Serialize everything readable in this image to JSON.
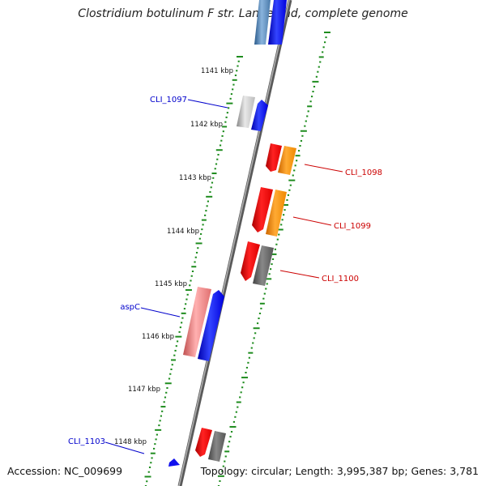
{
  "title": "Clostridium botulinum F str. Langeland, complete genome",
  "accession": "Accession: NC_009699",
  "topology": "Topology: circular; Length: 3,995,387 bp; Genes: 3,781",
  "colors": {
    "backbone": "#888888",
    "tick_dots": "#1e8c1e",
    "forward_label": "#0000cc",
    "reverse_label": "#cc0000"
  },
  "kbp_ticks": [
    "1141 kbp",
    "1142 kbp",
    "1143 kbp",
    "1144 kbp",
    "1145 kbp",
    "1146 kbp",
    "1147 kbp",
    "1148 kbp"
  ],
  "gene_labels": [
    "CLI_1097",
    "CLI_1098",
    "CLI_1099",
    "CLI_1100",
    "aspC",
    "CLI_1103"
  ]
}
